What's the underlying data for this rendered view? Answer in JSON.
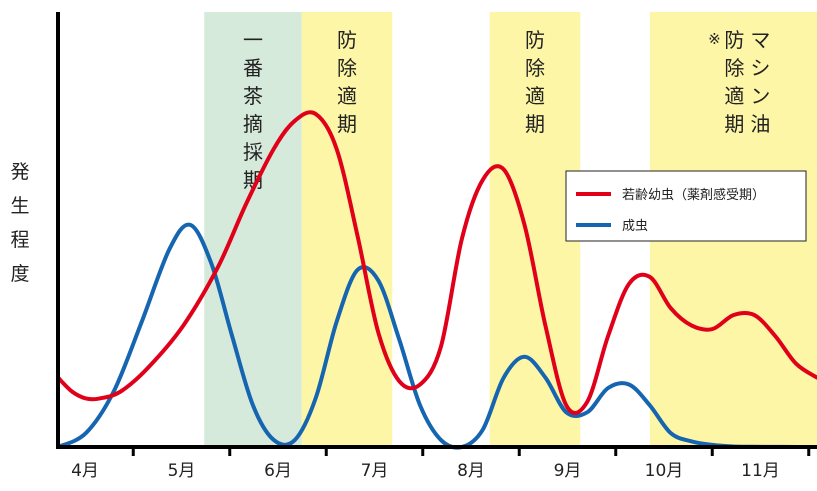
{
  "chart_data": {
    "type": "line",
    "ylabel": "発生程度",
    "x_ticks": [
      "4月",
      "5月",
      "6月",
      "7月",
      "8月",
      "9月",
      "10月",
      "11月"
    ],
    "bands": [
      {
        "label": "一番茶摘採期",
        "start": 4.6,
        "end": 5.3,
        "color": "#d5eadb"
      },
      {
        "label": "防除適期",
        "start": 5.3,
        "end": 5.95,
        "color": "#fdf6a6"
      },
      {
        "label": "防除適期",
        "start": 6.65,
        "end": 7.3,
        "color": "#fdf6a6"
      },
      {
        "label": "※防除適期",
        "label_extra": "マシン油",
        "start": 7.8,
        "end": 9.2,
        "color": "#fdf6a6"
      }
    ],
    "series": [
      {
        "name": "若齢幼虫（薬剤感受期）",
        "color": "#e0001a",
        "x": [
          3.55,
          3.65,
          3.75,
          3.85,
          4.0,
          4.2,
          4.45,
          4.7,
          4.9,
          5.1,
          5.25,
          5.4,
          5.55,
          5.7,
          5.85,
          6.0,
          6.15,
          6.3,
          6.45,
          6.6,
          6.75,
          6.9,
          7.05,
          7.2,
          7.35,
          7.5,
          7.65,
          7.8,
          7.95,
          8.1,
          8.25,
          8.4,
          8.55,
          8.7,
          8.85,
          9.0
        ],
        "y": [
          0.2,
          0.16,
          0.14,
          0.14,
          0.16,
          0.23,
          0.35,
          0.52,
          0.7,
          0.86,
          0.94,
          0.96,
          0.86,
          0.61,
          0.33,
          0.19,
          0.18,
          0.29,
          0.6,
          0.77,
          0.8,
          0.64,
          0.35,
          0.12,
          0.13,
          0.32,
          0.47,
          0.49,
          0.4,
          0.35,
          0.34,
          0.38,
          0.38,
          0.32,
          0.24,
          0.2
        ]
      },
      {
        "name": "成虫",
        "color": "#1565b0",
        "x": [
          3.55,
          3.75,
          3.95,
          4.15,
          4.35,
          4.5,
          4.65,
          4.8,
          4.95,
          5.1,
          5.25,
          5.4,
          5.55,
          5.7,
          5.85,
          6.0,
          6.15,
          6.3,
          6.45,
          6.6,
          6.75,
          6.9,
          7.05,
          7.2,
          7.35,
          7.5,
          7.65,
          7.8,
          7.95,
          8.1,
          8.25,
          8.4,
          8.55,
          8.75,
          9.0
        ],
        "y": [
          0.0,
          0.04,
          0.16,
          0.36,
          0.57,
          0.64,
          0.53,
          0.32,
          0.12,
          0.02,
          0.02,
          0.14,
          0.36,
          0.51,
          0.48,
          0.31,
          0.12,
          0.02,
          0.0,
          0.05,
          0.2,
          0.26,
          0.2,
          0.1,
          0.1,
          0.17,
          0.18,
          0.12,
          0.04,
          0.016,
          0.006,
          0.0015,
          0.0007,
          0.0002,
          0.0
        ]
      }
    ],
    "xlim": [
      3.55,
      9.0
    ],
    "ylim": [
      0,
      1
    ],
    "legend_position": "right",
    "grid": false
  }
}
